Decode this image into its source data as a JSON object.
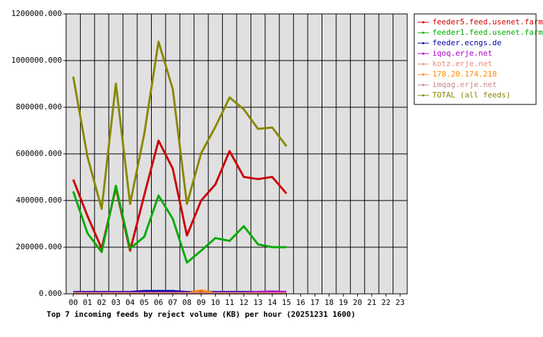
{
  "chart_data": {
    "type": "line",
    "title": "Top 7 incoming feeds by reject volume (KB) per hour (20251231 1600)",
    "categories": [
      "00",
      "01",
      "02",
      "03",
      "04",
      "05",
      "06",
      "07",
      "08",
      "09",
      "10",
      "11",
      "12",
      "13",
      "14",
      "15",
      "16",
      "17",
      "18",
      "19",
      "20",
      "21",
      "22",
      "23"
    ],
    "ylim": [
      0,
      1200000
    ],
    "yticks": [
      {
        "value": 0,
        "label": "0.000"
      },
      {
        "value": 200000,
        "label": "200000.000"
      },
      {
        "value": 400000,
        "label": "400000.000"
      },
      {
        "value": 600000,
        "label": "600000.000"
      },
      {
        "value": 800000,
        "label": "800000.000"
      },
      {
        "value": 1000000,
        "label": "1000000.000"
      },
      {
        "value": 1200000,
        "label": "1200000.000"
      }
    ],
    "grid": true,
    "series": [
      {
        "name": "feeder5.feed.usenet.farm",
        "color": "#cc0000",
        "values": [
          490000,
          334000,
          194000,
          454000,
          185000,
          424000,
          657000,
          537000,
          250000,
          400000,
          469000,
          612000,
          501000,
          492000,
          501000,
          430000,
          null,
          null,
          null,
          null,
          null,
          null,
          null,
          null
        ]
      },
      {
        "name": "feeder1.feed.usenet.farm",
        "color": "#00aa00",
        "values": [
          439000,
          260000,
          179000,
          463000,
          194000,
          245000,
          421000,
          322000,
          134000,
          185000,
          239000,
          227000,
          290000,
          212000,
          200000,
          200000,
          null,
          null,
          null,
          null,
          null,
          null,
          null,
          null
        ]
      },
      {
        "name": "feeder.ecngs.de",
        "color": "#0000aa",
        "values": [
          8000,
          8000,
          8000,
          8000,
          8000,
          12000,
          12000,
          12000,
          8000,
          8000,
          8000,
          8000,
          8000,
          8000,
          8000,
          8000,
          null,
          null,
          null,
          null,
          null,
          null,
          null,
          null
        ]
      },
      {
        "name": "iqoq.erje.net",
        "color": "#aa00cc",
        "values": [
          5000,
          5000,
          5000,
          5000,
          5000,
          5000,
          5000,
          5000,
          5000,
          5000,
          5000,
          5000,
          5000,
          8000,
          10000,
          8000,
          null,
          null,
          null,
          null,
          null,
          null,
          null,
          null
        ]
      },
      {
        "name": "kotz.erje.net",
        "color": "#ee8877",
        "values": [
          3000,
          3000,
          3000,
          3000,
          3000,
          3000,
          3000,
          3000,
          3000,
          3000,
          3000,
          3000,
          3000,
          3000,
          3000,
          3000,
          null,
          null,
          null,
          null,
          null,
          null,
          null,
          null
        ]
      },
      {
        "name": "178.20.174.218",
        "color": "#ff8800",
        "values": [
          2000,
          2000,
          2000,
          2000,
          2000,
          2000,
          2000,
          2000,
          2000,
          15000,
          2000,
          2000,
          2000,
          2000,
          2000,
          2000,
          null,
          null,
          null,
          null,
          null,
          null,
          null,
          null
        ]
      },
      {
        "name": "imqag.erje.net",
        "color": "#cc8888",
        "values": [
          2000,
          2000,
          2000,
          2000,
          2000,
          2000,
          2000,
          2000,
          2000,
          2000,
          2000,
          2000,
          2000,
          2000,
          2000,
          2000,
          null,
          null,
          null,
          null,
          null,
          null,
          null,
          null
        ]
      },
      {
        "name": "TOTAL (all feeds)",
        "color": "#888800",
        "values": [
          931000,
          588000,
          364000,
          901000,
          385000,
          687000,
          1081000,
          878000,
          385000,
          603000,
          716000,
          842000,
          791000,
          707000,
          713000,
          633000,
          null,
          null,
          null,
          null,
          null,
          null,
          null,
          null
        ]
      }
    ]
  }
}
